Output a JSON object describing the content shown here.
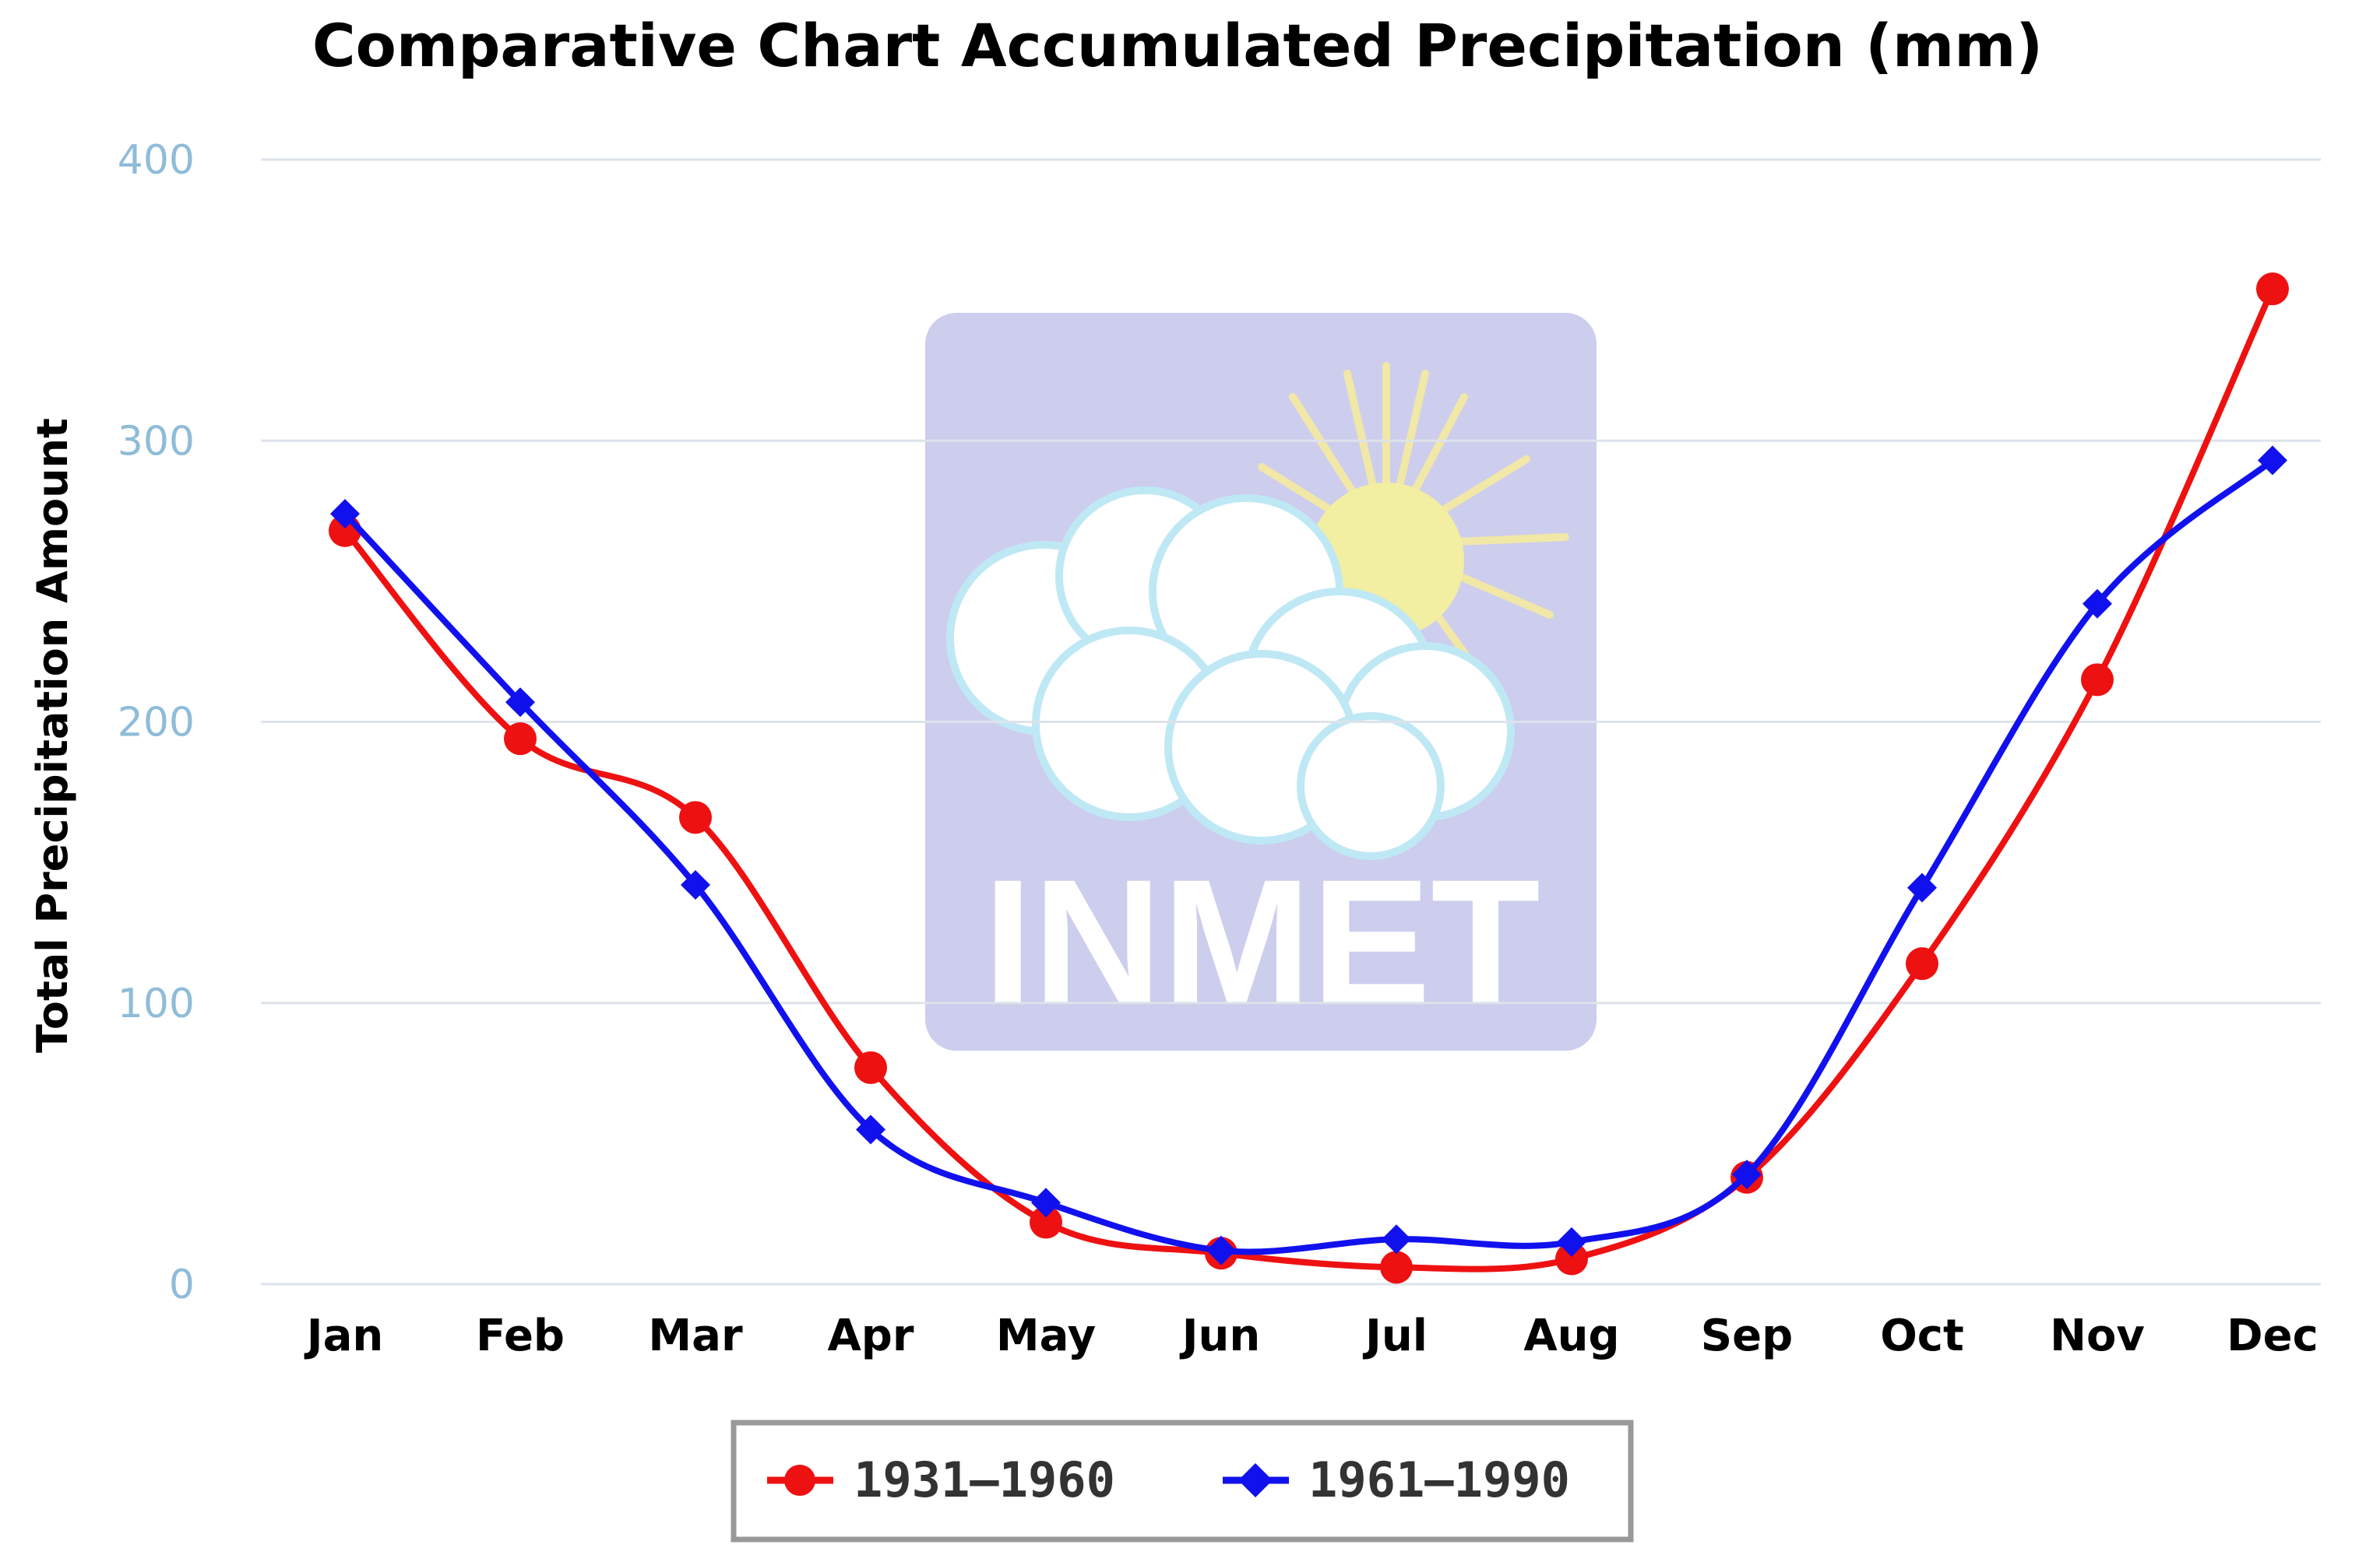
{
  "chart_data": {
    "type": "line",
    "title": "Comparative Chart Accumulated Precipitation (mm)",
    "xlabel": "",
    "ylabel": "Total Precipitation Amount",
    "ylim": [
      0,
      400
    ],
    "yticks": [
      0,
      100,
      200,
      300,
      400
    ],
    "grid": true,
    "legend_position": "bottom-center",
    "categories": [
      "Jan",
      "Feb",
      "Mar",
      "Apr",
      "May",
      "Jun",
      "Jul",
      "Aug",
      "Sep",
      "Oct",
      "Nov",
      "Dec"
    ],
    "series": [
      {
        "name": "1931–1960",
        "color": "#ee1111",
        "marker": "circle",
        "values": [
          268,
          194,
          166,
          77,
          22,
          11,
          6,
          9,
          38,
          114,
          215,
          354
        ]
      },
      {
        "name": "1961–1990",
        "color": "#1111ee",
        "marker": "diamond",
        "values": [
          274,
          207,
          142,
          55,
          29,
          12,
          16,
          15,
          39,
          141,
          242,
          293
        ]
      }
    ],
    "watermark": {
      "text": "INMET",
      "background": "#cdcdee"
    }
  }
}
